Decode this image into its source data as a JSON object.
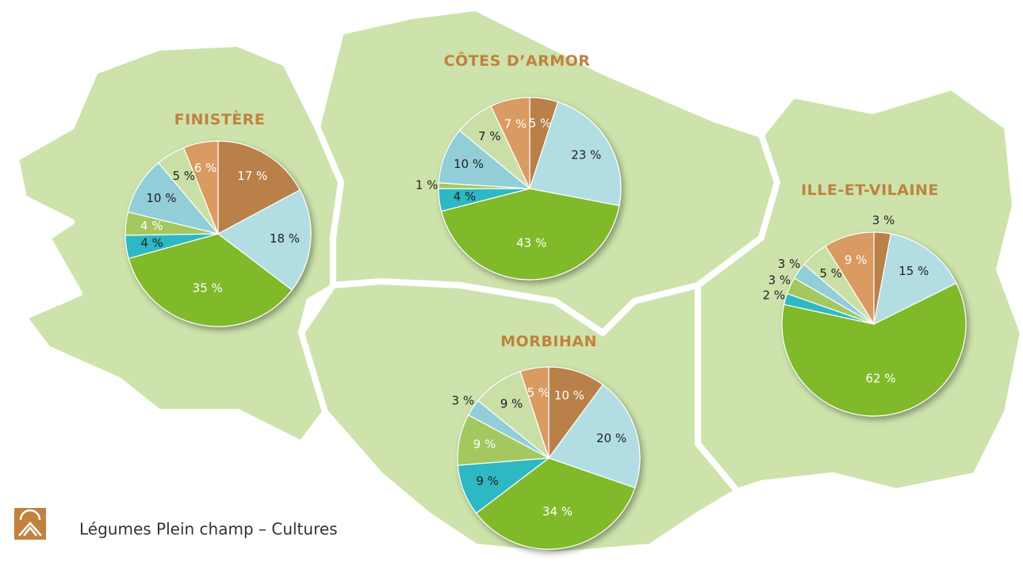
{
  "caption": "Légumes Plein champ – Cultures",
  "chart_data": [
    {
      "type": "pie",
      "title": "FINISTÈRE",
      "values": [
        17,
        18,
        35,
        4,
        4,
        10,
        5,
        6
      ],
      "value_labels": [
        "17 %",
        "18 %",
        "35 %",
        "4 %",
        "4 %",
        "10 %",
        "5 %",
        "6 %"
      ],
      "colors": [
        "#b98049",
        "#b2dde3",
        "#80b929",
        "#2fb8c4",
        "#a3c85e",
        "#91ced8",
        "#c9dfa6",
        "#d99b62"
      ]
    },
    {
      "type": "pie",
      "title": "CÔTES D’ARMOR",
      "values": [
        5,
        23,
        43,
        4,
        1,
        10,
        7,
        7
      ],
      "value_labels": [
        "5 %",
        "23 %",
        "43 %",
        "4 %",
        "1 %",
        "10 %",
        "7 %",
        "7 %"
      ],
      "colors": [
        "#b98049",
        "#b2dde3",
        "#80b929",
        "#2fb8c4",
        "#a3c85e",
        "#91ced8",
        "#c9dfa6",
        "#d99b62"
      ]
    },
    {
      "type": "pie",
      "title": "ILLE-ET-VILAINE",
      "values": [
        3,
        15,
        62,
        2,
        3,
        3,
        5,
        9
      ],
      "value_labels": [
        "3 %",
        "15 %",
        "62 %",
        "2 %",
        "3 %",
        "3 %",
        "5 %",
        "9 %"
      ],
      "colors": [
        "#b98049",
        "#b2dde3",
        "#80b929",
        "#2fb8c4",
        "#a3c85e",
        "#91ced8",
        "#c9dfa6",
        "#d99b62"
      ]
    },
    {
      "type": "pie",
      "title": "MORBIHAN",
      "values": [
        10,
        20,
        34,
        9,
        9,
        3,
        9,
        5
      ],
      "value_labels": [
        "10 %",
        "20 %",
        "34 %",
        "9 %",
        "9 %",
        "3 %",
        "9 %",
        "5 %"
      ],
      "colors": [
        "#b98049",
        "#b2dde3",
        "#80b929",
        "#2fb8c4",
        "#a3c85e",
        "#91ced8",
        "#c9dfa6",
        "#d99b62"
      ]
    }
  ]
}
